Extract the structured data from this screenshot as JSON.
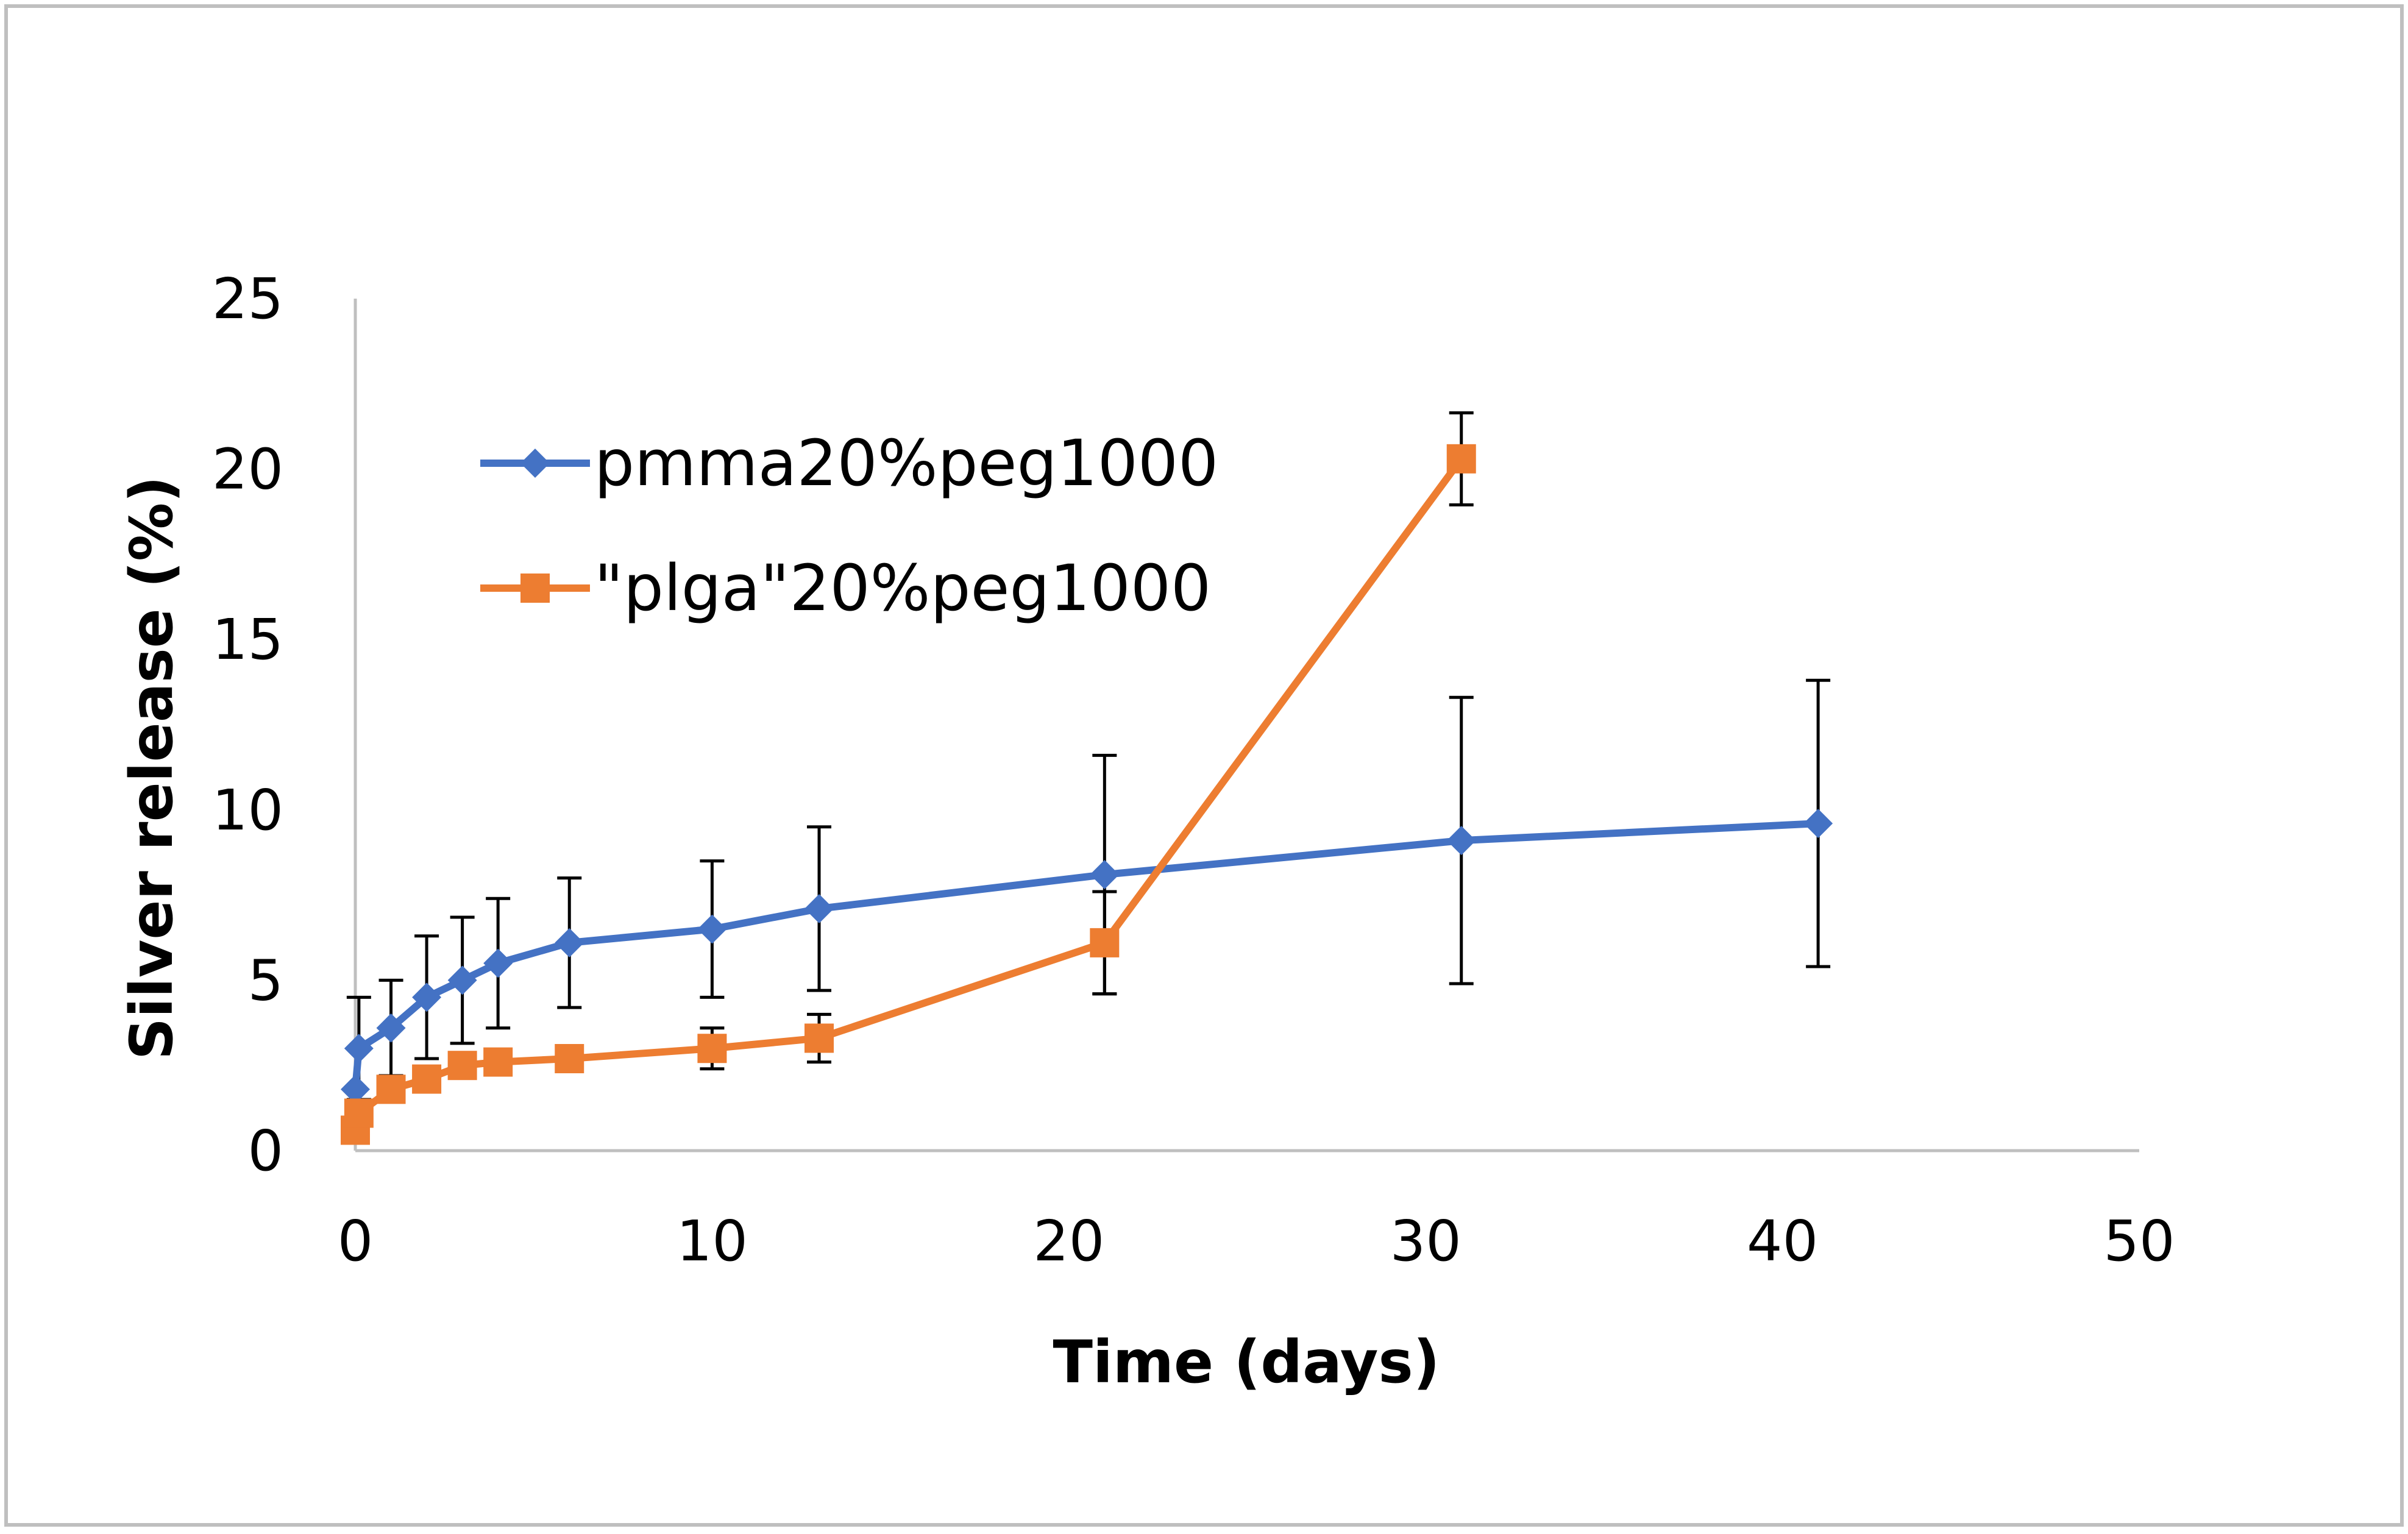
{
  "chart_data": {
    "type": "line",
    "title": "",
    "xlabel": "Time (days)",
    "ylabel": "Silver release (%)",
    "xlim": [
      0,
      50
    ],
    "ylim": [
      0,
      25
    ],
    "xticks": [
      0,
      10,
      20,
      30,
      40,
      50
    ],
    "yticks": [
      0,
      5,
      10,
      15,
      20,
      25
    ],
    "grid": false,
    "legend_position": "upper-left",
    "series": [
      {
        "name": "pmma20%peg1000",
        "color": "#4472C4",
        "marker": "diamond",
        "points": [
          {
            "x": 0,
            "y": 1.8,
            "err": 0
          },
          {
            "x": 0.1,
            "y": 3.0,
            "err": 1.5
          },
          {
            "x": 1,
            "y": 3.6,
            "err": 1.4
          },
          {
            "x": 2,
            "y": 4.5,
            "err": 1.8
          },
          {
            "x": 3,
            "y": 5.0,
            "err": 1.85
          },
          {
            "x": 4,
            "y": 5.5,
            "err": 1.9
          },
          {
            "x": 6,
            "y": 6.1,
            "err": 1.9
          },
          {
            "x": 10,
            "y": 6.5,
            "err": 2.0
          },
          {
            "x": 13,
            "y": 7.1,
            "err": 2.4
          },
          {
            "x": 21,
            "y": 8.1,
            "err": 3.5
          },
          {
            "x": 31,
            "y": 9.1,
            "err": 4.2
          },
          {
            "x": 41,
            "y": 9.6,
            "err": 4.2
          }
        ]
      },
      {
        "name": "\"plga\"20%peg1000",
        "color": "#ED7D31",
        "marker": "square",
        "points": [
          {
            "x": 0,
            "y": 0.6,
            "err": 0
          },
          {
            "x": 0.1,
            "y": 1.1,
            "err": 0
          },
          {
            "x": 1,
            "y": 1.8,
            "err": 0
          },
          {
            "x": 2,
            "y": 2.1,
            "err": 0
          },
          {
            "x": 3,
            "y": 2.5,
            "err": 0.3
          },
          {
            "x": 4,
            "y": 2.6,
            "err": 0.3
          },
          {
            "x": 6,
            "y": 2.7,
            "err": 0.3
          },
          {
            "x": 10,
            "y": 3.0,
            "err": 0.6
          },
          {
            "x": 13,
            "y": 3.3,
            "err": 0.7
          },
          {
            "x": 21,
            "y": 6.1,
            "err": 1.5
          },
          {
            "x": 31,
            "y": 20.3,
            "err": 1.35
          }
        ]
      }
    ]
  }
}
